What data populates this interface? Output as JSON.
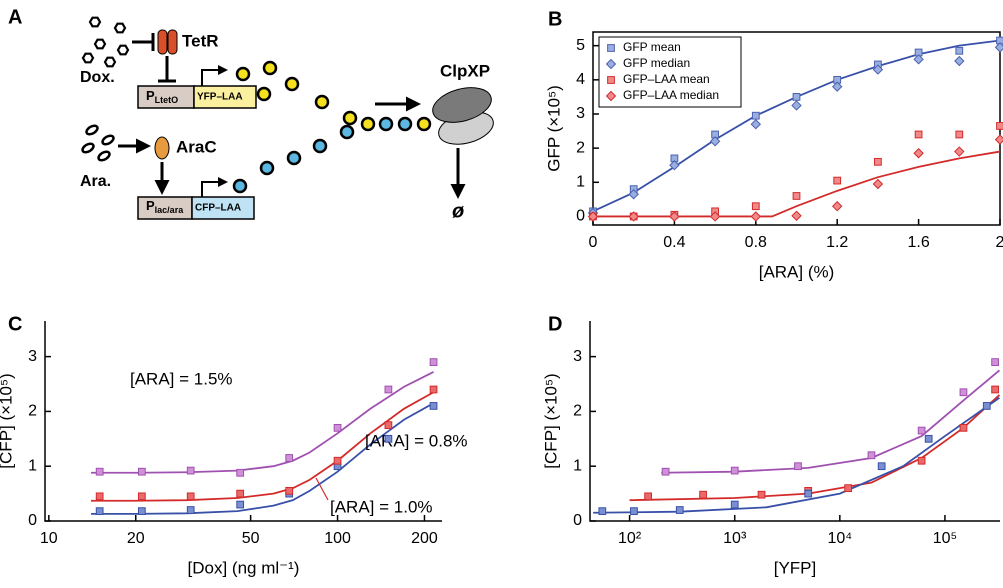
{
  "diagram": {
    "panel": "A",
    "dox": "Dox.",
    "tetr": "TetR",
    "promoter1": "P",
    "promoter1_sub": "LtetO",
    "gene1": "YFP–LAA",
    "ara": "Ara.",
    "arac": "AraC",
    "promoter2": "P",
    "promoter2_sub": "lac/ara",
    "gene2": "CFP–LAA",
    "protease": "ClpXP",
    "degraded": "ø"
  },
  "chart_data": [
    {
      "panel": "B",
      "type": "scatter",
      "xlabel": "[ARA] (%)",
      "ylabel": "GFP (×10⁵)",
      "xlim": [
        0,
        2
      ],
      "ylim": [
        -0.25,
        5.4
      ],
      "xticks": [
        0,
        0.4,
        0.8,
        1.2,
        1.6,
        2
      ],
      "yticks": [
        0,
        1,
        2,
        3,
        4,
        5
      ],
      "frame": "box",
      "legend": "upper-left",
      "series": [
        {
          "name": "GFP mean",
          "color": "#4a62b0",
          "fill": "#9aaee0",
          "marker": "square",
          "x": [
            0,
            0.2,
            0.4,
            0.6,
            0.8,
            1.0,
            1.2,
            1.4,
            1.6,
            1.8,
            2.0
          ],
          "values": [
            0.15,
            0.8,
            1.7,
            2.4,
            2.95,
            3.5,
            4.0,
            4.45,
            4.8,
            4.85,
            5.15
          ]
        },
        {
          "name": "GFP median",
          "color": "#4a62b0",
          "fill": "#9aaee0",
          "marker": "diamond",
          "x": [
            0,
            0.2,
            0.4,
            0.6,
            0.8,
            1.0,
            1.2,
            1.4,
            1.6,
            1.8,
            2.0
          ],
          "values": [
            0.1,
            0.65,
            1.5,
            2.2,
            2.7,
            3.25,
            3.8,
            4.3,
            4.6,
            4.55,
            4.95
          ]
        },
        {
          "name": "GFP–LAA mean",
          "color": "#d42a2a",
          "fill": "#f08a8a",
          "marker": "square",
          "x": [
            0,
            0.2,
            0.4,
            0.6,
            0.8,
            1.0,
            1.2,
            1.4,
            1.6,
            1.8,
            2.0
          ],
          "values": [
            0,
            0,
            0.05,
            0.15,
            0.3,
            0.6,
            1.05,
            1.6,
            2.4,
            2.4,
            2.65
          ]
        },
        {
          "name": "GFP–LAA median",
          "color": "#d42a2a",
          "fill": "#f08a8a",
          "marker": "diamond",
          "x": [
            0,
            0.2,
            0.4,
            0.6,
            0.8,
            1.0,
            1.2,
            1.4,
            1.6,
            1.8,
            2.0
          ],
          "values": [
            0,
            0,
            0,
            0,
            0,
            0.02,
            0.3,
            0.95,
            1.85,
            1.9,
            2.25
          ]
        }
      ],
      "fits": [
        {
          "color": "#3850a8",
          "x": [
            0,
            0.2,
            0.4,
            0.6,
            0.8,
            1.0,
            1.2,
            1.4,
            1.6,
            1.8,
            2.0
          ],
          "values": [
            0.15,
            0.7,
            1.45,
            2.25,
            2.95,
            3.5,
            4.0,
            4.4,
            4.75,
            5.0,
            5.15
          ]
        },
        {
          "color": "#d42a2a",
          "x": [
            0,
            0.2,
            0.4,
            0.6,
            0.8,
            0.88,
            1.0,
            1.2,
            1.4,
            1.6,
            1.8,
            2.0
          ],
          "values": [
            0,
            0,
            0,
            0,
            0,
            0,
            0.3,
            0.75,
            1.15,
            1.45,
            1.7,
            1.9
          ]
        }
      ]
    },
    {
      "panel": "C",
      "type": "scatter",
      "xlabel": "[Dox] (ng ml⁻¹)",
      "ylabel": "[CFP] (×10⁵)",
      "xlog": true,
      "xlim": [
        9.7,
        230
      ],
      "ylim": [
        0,
        3.65
      ],
      "xticks": [
        10,
        20,
        50,
        100,
        200
      ],
      "yticks": [
        0,
        1,
        2,
        3
      ],
      "frame": "axes",
      "legend": "inline",
      "series": [
        {
          "name": "[ARA] = 1.5%",
          "color": "#a050b0",
          "fill": "#d090d8",
          "marker": "square",
          "x": [
            15,
            21,
            31,
            46,
            68,
            100,
            150,
            215
          ],
          "values": [
            0.9,
            0.9,
            0.92,
            0.88,
            1.15,
            1.7,
            2.4,
            2.9
          ]
        },
        {
          "name": "[ARA] = 0.8%",
          "color": "#3850a8",
          "fill": "#7a8fd0",
          "marker": "square",
          "x": [
            15,
            21,
            31,
            46,
            68,
            100,
            150,
            215
          ],
          "values": [
            0.18,
            0.18,
            0.2,
            0.3,
            0.5,
            1.0,
            1.5,
            2.1
          ]
        },
        {
          "name": "[ARA] = 1.0%",
          "color": "#d42a2a",
          "fill": "#e86a6a",
          "marker": "square",
          "x": [
            15,
            21,
            31,
            46,
            68,
            100,
            150,
            215
          ],
          "values": [
            0.45,
            0.45,
            0.45,
            0.5,
            0.55,
            1.1,
            1.75,
            2.4
          ]
        }
      ],
      "fits": [
        {
          "color": "#a050b0",
          "x": [
            14,
            20,
            30,
            45,
            60,
            70,
            80,
            100,
            130,
            170,
            215
          ],
          "values": [
            0.88,
            0.88,
            0.89,
            0.92,
            1.0,
            1.1,
            1.25,
            1.6,
            2.05,
            2.45,
            2.72
          ]
        },
        {
          "color": "#3850a8",
          "x": [
            14,
            20,
            30,
            45,
            60,
            70,
            80,
            100,
            130,
            170,
            215
          ],
          "values": [
            0.13,
            0.13,
            0.14,
            0.18,
            0.28,
            0.38,
            0.55,
            0.9,
            1.4,
            1.85,
            2.15
          ]
        },
        {
          "color": "#d42a2a",
          "x": [
            14,
            20,
            30,
            45,
            60,
            70,
            80,
            100,
            130,
            170,
            215
          ],
          "values": [
            0.37,
            0.37,
            0.38,
            0.42,
            0.5,
            0.6,
            0.75,
            1.1,
            1.6,
            2.05,
            2.35
          ]
        }
      ]
    },
    {
      "panel": "D",
      "type": "scatter",
      "xlabel": "[YFP]",
      "ylabel": "[CFP] (×10⁵)",
      "xlog": true,
      "xlim": [
        42,
        334000
      ],
      "ylim": [
        0,
        3.65
      ],
      "xticks": [
        {
          "value": 100,
          "label": "10²"
        },
        {
          "value": 1000,
          "label": "10³"
        },
        {
          "value": 10000,
          "label": "10⁴"
        },
        {
          "value": 100000,
          "label": "10⁵"
        }
      ],
      "yticks": [
        0,
        1,
        2,
        3
      ],
      "frame": "axes",
      "series": [
        {
          "color": "#a050b0",
          "fill": "#d090d8",
          "marker": "square",
          "x": [
            220,
            1000,
            4000,
            20000,
            60000,
            150000,
            300000
          ],
          "values": [
            0.9,
            0.92,
            1.0,
            1.2,
            1.65,
            2.35,
            2.9
          ]
        },
        {
          "color": "#d42a2a",
          "fill": "#e86a6a",
          "marker": "square",
          "x": [
            150,
            500,
            1800,
            5000,
            12000,
            60000,
            150000,
            300000
          ],
          "values": [
            0.45,
            0.48,
            0.48,
            0.55,
            0.6,
            1.1,
            1.7,
            2.4
          ]
        },
        {
          "color": "#3850a8",
          "fill": "#7a8fd0",
          "marker": "square",
          "x": [
            55,
            110,
            300,
            1000,
            5000,
            25000,
            70000,
            250000
          ],
          "values": [
            0.18,
            0.18,
            0.2,
            0.3,
            0.5,
            1.0,
            1.5,
            2.1
          ]
        }
      ],
      "fits": [
        {
          "color": "#a050b0",
          "x": [
            200,
            1000,
            5000,
            20000,
            60000,
            150000,
            330000
          ],
          "values": [
            0.88,
            0.9,
            0.97,
            1.15,
            1.55,
            2.2,
            2.75
          ]
        },
        {
          "color": "#d42a2a",
          "x": [
            100,
            1000,
            5000,
            20000,
            60000,
            150000,
            330000
          ],
          "values": [
            0.38,
            0.42,
            0.5,
            0.7,
            1.15,
            1.7,
            2.3
          ]
        },
        {
          "color": "#3850a8",
          "x": [
            45,
            300,
            2000,
            10000,
            40000,
            100000,
            330000
          ],
          "values": [
            0.15,
            0.17,
            0.25,
            0.5,
            1.0,
            1.55,
            2.25
          ]
        }
      ]
    }
  ]
}
